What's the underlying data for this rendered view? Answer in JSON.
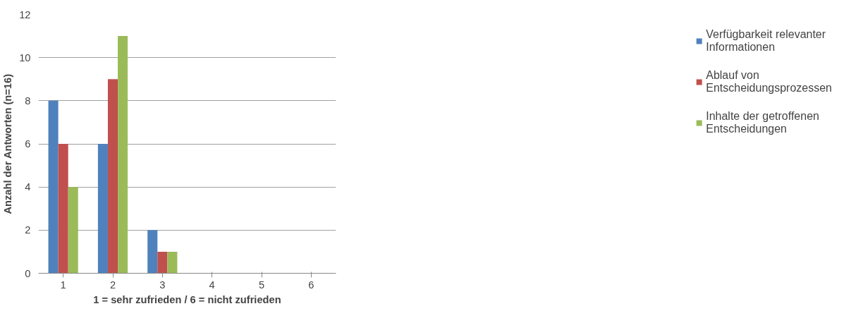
{
  "chart_data": {
    "type": "bar",
    "xlabel": "1 = sehr zufrieden / 6 = nicht zufrieden",
    "ylabel": "Anzahl der Antworten (n=16)",
    "categories": [
      "1",
      "2",
      "3",
      "4",
      "5",
      "6"
    ],
    "series": [
      {
        "name": "Verfügbarkeit relevanter Informationen",
        "color": "#4f81bd",
        "values": [
          8,
          6,
          2,
          0,
          0,
          0
        ]
      },
      {
        "name": "Ablauf von Entscheidungsprozessen",
        "color": "#c0504d",
        "values": [
          6,
          9,
          1,
          0,
          0,
          0
        ]
      },
      {
        "name": "Inhalte der getroffenen Entscheidungen",
        "color": "#9bbb59",
        "values": [
          4,
          11,
          1,
          0,
          0,
          0
        ]
      }
    ],
    "ylim": [
      0,
      12
    ],
    "yticks": [
      0,
      2,
      4,
      6,
      8,
      10,
      12
    ],
    "grid": "y",
    "legend": "right"
  }
}
